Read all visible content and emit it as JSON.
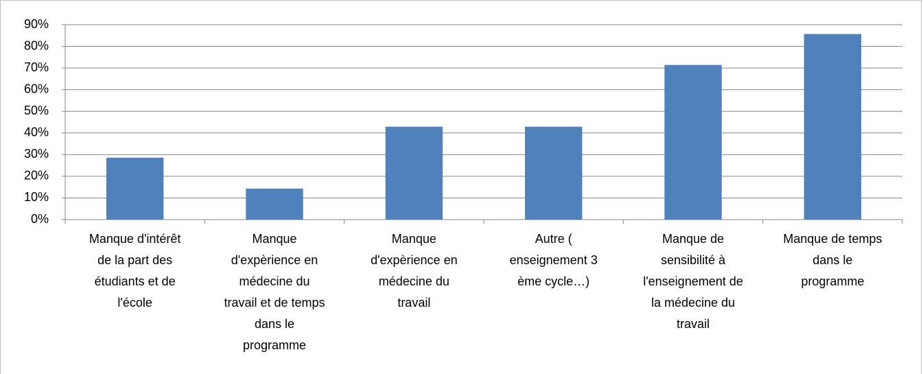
{
  "chart_data": {
    "type": "bar",
    "categories": [
      "Manque d'intérêt de la part des étudiants et de l'école",
      "Manque d'expèrience en médecine du travail et de temps dans le programme",
      "Manque d'expèrience en médecine du travail",
      "Autre ( enseignement 3 ème cycle…)",
      "Manque de sensibilité à l'enseignement de la médecine du travail",
      "Manque de temps dans le programme"
    ],
    "values": [
      28.6,
      14.3,
      42.9,
      42.9,
      71.4,
      85.7
    ],
    "color": "#4f81bd",
    "ylim": [
      0,
      90
    ],
    "yticks": [
      {
        "value": 0,
        "label": "0%"
      },
      {
        "value": 10,
        "label": "10%"
      },
      {
        "value": 20,
        "label": "20%"
      },
      {
        "value": 30,
        "label": "30%"
      },
      {
        "value": 40,
        "label": "40%"
      },
      {
        "value": 50,
        "label": "50%"
      },
      {
        "value": 60,
        "label": "60%"
      },
      {
        "value": 70,
        "label": "70%"
      },
      {
        "value": 80,
        "label": "80%"
      },
      {
        "value": 90,
        "label": "90%"
      }
    ],
    "grid": true
  }
}
